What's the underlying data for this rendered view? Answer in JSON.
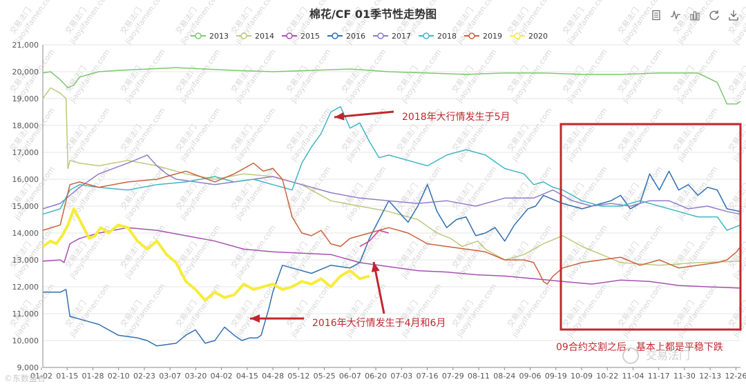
{
  "toolbar": {
    "icons": [
      "data-view-icon",
      "line-chart-icon",
      "bar-chart-icon",
      "restore-icon",
      "save-image-icon"
    ]
  },
  "watermark": {
    "text": "交易法门",
    "site": "jiaoyifamen.com",
    "logo_text": "交易法门",
    "bottom_left": "©东数盛合"
  },
  "colors": {
    "2013": "#7cc86b",
    "2014": "#bcc87a",
    "2015": "#a54fb0",
    "2016": "#2f6fb0",
    "2017": "#8f7cc9",
    "2018": "#3fb6c2",
    "2019": "#c8613a",
    "2020": "#f6ec3a",
    "2016_overlay": "#cf3a9c",
    "annotation": "#c0272d"
  },
  "chart_data": {
    "type": "line",
    "title": "棉花/CF 01季节性走势图",
    "xlabel": "",
    "ylabel": "",
    "ylim": [
      9000,
      21000
    ],
    "yticks": [
      9000,
      10000,
      11000,
      12000,
      13000,
      14000,
      15000,
      16000,
      17000,
      18000,
      19000,
      20000,
      21000
    ],
    "ytick_labels": [
      "9,000",
      "10,000",
      "11,000",
      "12,000",
      "13,000",
      "14,000",
      "15,000",
      "16,000",
      "17,000",
      "18,000",
      "19,000",
      "20,000",
      "21,000"
    ],
    "x_tick_labels": [
      "01-02",
      "01-15",
      "01-28",
      "02-10",
      "02-23",
      "03-07",
      "03-20",
      "04-02",
      "04-15",
      "04-28",
      "05-12",
      "05-25",
      "06-07",
      "06-20",
      "07-03",
      "07-16",
      "07-29",
      "08-11",
      "08-24",
      "09-06",
      "09-19",
      "10-09",
      "10-22",
      "11-04",
      "11-17",
      "11-30",
      "12-13",
      "12-26"
    ],
    "xrange_days": [
      1,
      362
    ],
    "grid": true,
    "legend_position": "top-center",
    "legend": [
      "2013",
      "2014",
      "2015",
      "2016",
      "2017",
      "2018",
      "2019",
      "2020"
    ],
    "series": [
      {
        "name": "2013",
        "x": [
          1,
          5,
          10,
          14,
          17,
          20,
          25,
          30,
          40,
          55,
          70,
          85,
          100,
          120,
          140,
          160,
          180,
          200,
          220,
          240,
          260,
          280,
          300,
          320,
          340,
          350,
          355,
          360,
          362
        ],
        "values": [
          19950,
          20000,
          19700,
          19400,
          19500,
          19800,
          19900,
          20000,
          20050,
          20100,
          20150,
          20100,
          20050,
          20000,
          20050,
          20100,
          20000,
          19950,
          19900,
          19950,
          19950,
          19900,
          19900,
          19950,
          19950,
          19600,
          18800,
          18800,
          18900
        ]
      },
      {
        "name": "2014",
        "x": [
          1,
          5,
          10,
          13,
          14,
          15,
          20,
          30,
          45,
          60,
          75,
          90,
          105,
          120,
          135,
          150,
          165,
          180,
          195,
          205,
          212,
          218,
          222,
          226,
          230,
          240,
          250,
          260,
          270,
          280,
          290,
          300,
          320,
          340,
          362
        ],
        "values": [
          19000,
          19400,
          19200,
          19000,
          16400,
          16700,
          16600,
          16500,
          16700,
          16500,
          16200,
          16000,
          16200,
          16100,
          15800,
          15200,
          15000,
          14800,
          14500,
          14000,
          13800,
          13500,
          13600,
          13700,
          13400,
          13000,
          13200,
          13600,
          13900,
          13500,
          13200,
          12900,
          12800,
          12900,
          12950
        ]
      },
      {
        "name": "2015",
        "x": [
          1,
          10,
          12,
          15,
          20,
          30,
          45,
          60,
          75,
          90,
          105,
          120,
          135,
          150,
          165,
          180,
          195,
          210,
          225,
          240,
          255,
          270,
          285,
          300,
          315,
          330,
          345,
          362
        ],
        "values": [
          12950,
          13000,
          12900,
          13600,
          13800,
          14000,
          14200,
          14100,
          13900,
          13700,
          13400,
          13300,
          13250,
          13200,
          12900,
          12750,
          12600,
          12550,
          12450,
          12400,
          12300,
          12200,
          12100,
          12250,
          12200,
          12050,
          12000,
          11950
        ]
      },
      {
        "name": "2016",
        "x": [
          1,
          10,
          13,
          15,
          20,
          30,
          40,
          50,
          55,
          60,
          70,
          75,
          80,
          85,
          90,
          95,
          100,
          104,
          108,
          112,
          114,
          118,
          120,
          125,
          130,
          140,
          150,
          160,
          165,
          170,
          175,
          180,
          185,
          190,
          195,
          200,
          205,
          210,
          215,
          220,
          225,
          230,
          235,
          240,
          245,
          252,
          256,
          260,
          270,
          275,
          280,
          290,
          295,
          300,
          305,
          310,
          315,
          320,
          325,
          330,
          335,
          340,
          345,
          350,
          355,
          362
        ],
        "values": [
          11800,
          11800,
          11900,
          10900,
          10800,
          10600,
          10200,
          10100,
          10000,
          9800,
          9900,
          10200,
          10400,
          9900,
          10000,
          10500,
          10200,
          10000,
          10100,
          10100,
          10200,
          11200,
          11800,
          12800,
          12700,
          12500,
          12800,
          12700,
          12900,
          13800,
          14500,
          15200,
          14800,
          14400,
          15000,
          15800,
          14800,
          14200,
          14500,
          14600,
          13900,
          14000,
          14200,
          13700,
          14300,
          14900,
          15000,
          15400,
          15100,
          15000,
          14900,
          15100,
          15200,
          15400,
          14900,
          15100,
          16200,
          15600,
          16300,
          15600,
          15800,
          15400,
          15700,
          15600,
          14900,
          14800
        ]
      },
      {
        "name": "2017",
        "x": [
          1,
          10,
          15,
          20,
          30,
          45,
          55,
          60,
          65,
          70,
          80,
          90,
          100,
          110,
          120,
          135,
          150,
          165,
          180,
          195,
          210,
          225,
          240,
          255,
          265,
          275,
          285,
          295,
          305,
          315,
          325,
          335,
          345,
          355,
          362
        ],
        "values": [
          14900,
          15100,
          15400,
          15700,
          16200,
          16600,
          16900,
          16500,
          16200,
          16000,
          15900,
          15800,
          15900,
          16000,
          16100,
          15800,
          15500,
          15300,
          15200,
          15100,
          15200,
          15000,
          15300,
          15300,
          15600,
          15200,
          15000,
          15100,
          15000,
          15200,
          15200,
          14900,
          15000,
          14800,
          14700
        ]
      },
      {
        "name": "2018",
        "x": [
          1,
          10,
          15,
          20,
          30,
          45,
          60,
          75,
          90,
          100,
          110,
          120,
          130,
          135,
          140,
          145,
          150,
          155,
          160,
          165,
          170,
          175,
          180,
          190,
          200,
          210,
          220,
          230,
          240,
          250,
          255,
          260,
          265,
          270,
          280,
          290,
          300,
          310,
          320,
          330,
          340,
          350,
          355,
          362
        ],
        "values": [
          14700,
          14900,
          15600,
          15800,
          15700,
          15600,
          15800,
          15900,
          16100,
          15900,
          16000,
          15800,
          15600,
          16600,
          17200,
          17700,
          18500,
          18700,
          17900,
          18100,
          17400,
          16800,
          16900,
          16700,
          16500,
          16900,
          17100,
          16900,
          16400,
          16200,
          15800,
          15900,
          15700,
          15600,
          15200,
          15000,
          15000,
          15200,
          15000,
          14800,
          14600,
          14600,
          14100,
          14300
        ]
      },
      {
        "name": "2019",
        "x": [
          1,
          10,
          15,
          20,
          30,
          45,
          60,
          75,
          90,
          100,
          110,
          115,
          120,
          125,
          130,
          135,
          140,
          145,
          150,
          155,
          160,
          170,
          180,
          190,
          200,
          210,
          220,
          230,
          240,
          250,
          255,
          258,
          260,
          262,
          265,
          270,
          280,
          290,
          300,
          310,
          320,
          330,
          340,
          350,
          355,
          360,
          362
        ],
        "values": [
          14100,
          14300,
          15800,
          15900,
          15700,
          15900,
          16000,
          16300,
          15900,
          16200,
          16600,
          16300,
          16400,
          16000,
          14600,
          14000,
          13900,
          14100,
          13600,
          13500,
          13800,
          14000,
          14200,
          14000,
          13600,
          13500,
          13400,
          13300,
          13000,
          13000,
          12900,
          12500,
          12200,
          12100,
          12400,
          12700,
          12900,
          13000,
          13100,
          12800,
          13000,
          12700,
          12800,
          12900,
          13000,
          13300,
          13500
        ]
      },
      {
        "name": "2020",
        "x": [
          1,
          5,
          8,
          11,
          14,
          17,
          20,
          25,
          28,
          31,
          35,
          40,
          45,
          50,
          55,
          60,
          65,
          70,
          75,
          80,
          85,
          90,
          95,
          100,
          105,
          110,
          115,
          120,
          125,
          130,
          135,
          140,
          145,
          150,
          155,
          160,
          165,
          170
        ],
        "values": [
          13500,
          13700,
          13600,
          13900,
          14300,
          14900,
          14500,
          13800,
          13900,
          14200,
          14000,
          14300,
          14200,
          13700,
          13400,
          13700,
          13200,
          12900,
          12200,
          11900,
          11500,
          11800,
          11600,
          11700,
          12100,
          11900,
          12000,
          12100,
          11900,
          12000,
          12200,
          12100,
          12300,
          12000,
          12400,
          12600,
          12300,
          12400
        ]
      },
      {
        "name": "2016",
        "x": [
          165,
          170,
          175,
          180
        ],
        "values": [
          13500,
          13700,
          14100,
          14000
        ]
      }
    ],
    "annotations": [
      {
        "text": "2018年大行情发生于5月",
        "position": "top-center",
        "points_to": "2018 peak near 05-28"
      },
      {
        "text": "2016年大行情发生于4月和6月",
        "position": "bottom-center",
        "points_to": "2016 surges in April and June"
      },
      {
        "text": "09合约交割之后，基本上都是平稳下跌",
        "position": "bottom-right",
        "highlight": "10-01 to 12-31 box"
      }
    ]
  }
}
